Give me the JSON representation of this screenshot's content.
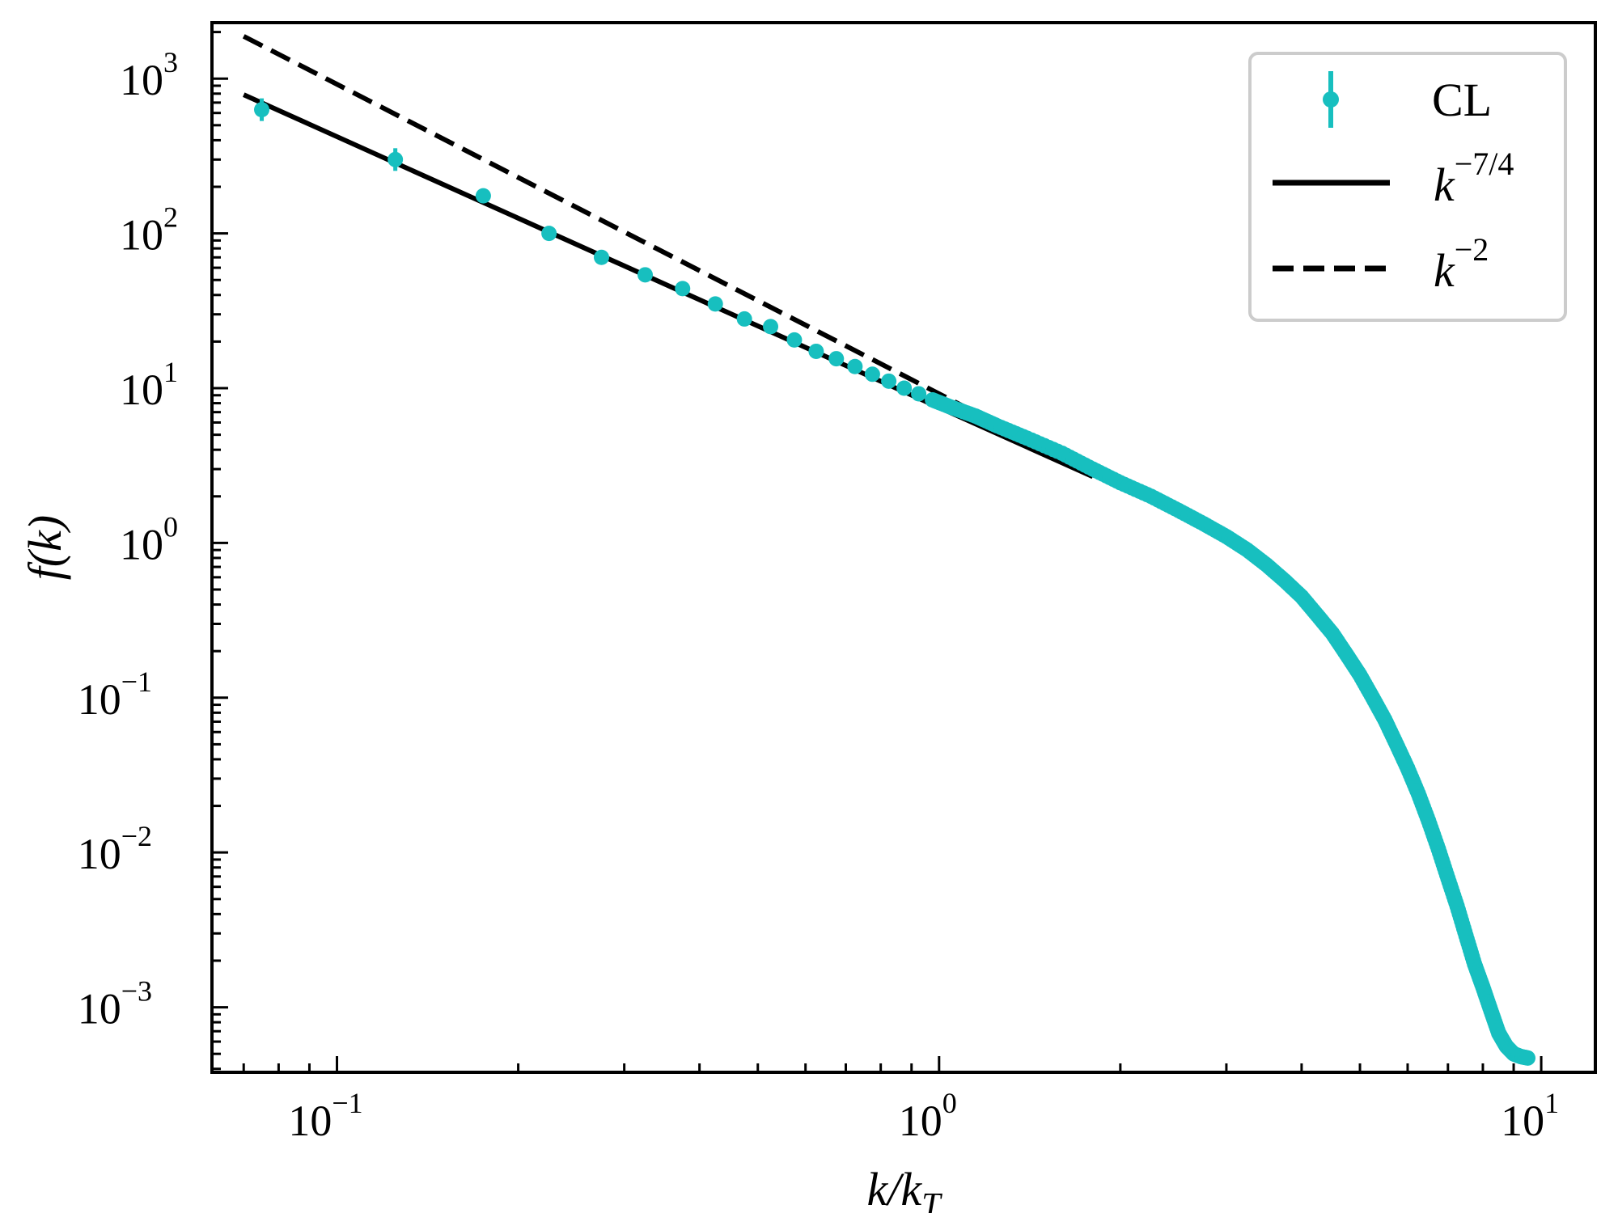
{
  "chart_data": {
    "type": "scatter",
    "xscale": "log",
    "yscale": "log",
    "xlim": [
      0.062,
      12.3
    ],
    "ylim": [
      0.00038,
      2300
    ],
    "xlabel": "k/k_T",
    "ylabel": "f(k)",
    "grid": false,
    "legend_position": "top-right",
    "x_ticks": [
      {
        "value": 0.1,
        "label": "10",
        "exponent": "−1"
      },
      {
        "value": 1,
        "label": "10",
        "exponent": "0"
      },
      {
        "value": 10,
        "label": "10",
        "exponent": "1"
      }
    ],
    "y_ticks": [
      {
        "value": 0.001,
        "label": "10",
        "exponent": "−3"
      },
      {
        "value": 0.01,
        "label": "10",
        "exponent": "−2"
      },
      {
        "value": 0.1,
        "label": "10",
        "exponent": "−1"
      },
      {
        "value": 1,
        "label": "10",
        "exponent": "0"
      },
      {
        "value": 10,
        "label": "10",
        "exponent": "1"
      },
      {
        "value": 100,
        "label": "10",
        "exponent": "2"
      },
      {
        "value": 1000,
        "label": "10",
        "exponent": "3"
      }
    ],
    "series": [
      {
        "name": "CL",
        "style": "markers-errorbars",
        "color": "#17bfbf",
        "points": [
          [
            0.075,
            630
          ],
          [
            0.125,
            300
          ],
          [
            0.175,
            175
          ],
          [
            0.225,
            100
          ],
          [
            0.275,
            70
          ],
          [
            0.325,
            54
          ],
          [
            0.375,
            44
          ],
          [
            0.425,
            35
          ],
          [
            0.475,
            28
          ],
          [
            0.525,
            25
          ],
          [
            0.575,
            20.5
          ],
          [
            0.625,
            17.3
          ],
          [
            0.675,
            15.5
          ],
          [
            0.725,
            13.8
          ],
          [
            0.775,
            12.3
          ],
          [
            0.825,
            11.1
          ],
          [
            0.875,
            10.0
          ],
          [
            0.925,
            9.2
          ],
          [
            0.975,
            8.4
          ],
          [
            1.05,
            7.5
          ],
          [
            1.15,
            6.6
          ],
          [
            1.25,
            5.7
          ],
          [
            1.4,
            4.75
          ],
          [
            1.6,
            3.8
          ],
          [
            1.8,
            3.0
          ],
          [
            2.0,
            2.45
          ],
          [
            2.25,
            2.0
          ],
          [
            2.5,
            1.62
          ],
          [
            2.75,
            1.33
          ],
          [
            3.0,
            1.1
          ],
          [
            3.25,
            0.9
          ],
          [
            3.5,
            0.72
          ],
          [
            3.75,
            0.57
          ],
          [
            4.0,
            0.45
          ],
          [
            4.25,
            0.34
          ],
          [
            4.5,
            0.26
          ],
          [
            4.75,
            0.19
          ],
          [
            5.0,
            0.14
          ],
          [
            5.25,
            0.1
          ],
          [
            5.5,
            0.072
          ],
          [
            5.75,
            0.05
          ],
          [
            6.0,
            0.035
          ],
          [
            6.25,
            0.024
          ],
          [
            6.5,
            0.016
          ],
          [
            6.75,
            0.0105
          ],
          [
            7.0,
            0.0068
          ],
          [
            7.25,
            0.0045
          ],
          [
            7.5,
            0.0029
          ],
          [
            7.75,
            0.0019
          ],
          [
            8.0,
            0.00135
          ],
          [
            8.25,
            0.00095
          ],
          [
            8.5,
            0.00068
          ],
          [
            8.75,
            0.00056
          ],
          [
            9.0,
            0.0005
          ],
          [
            9.25,
            0.00048
          ],
          [
            9.5,
            0.00047
          ]
        ]
      },
      {
        "name": "k^{-7/4}",
        "style": "solid",
        "color": "#000000",
        "x_range": [
          0.07,
          1.8
        ],
        "exponent": -1.75,
        "amplitude": 7.5
      },
      {
        "name": "k^{-2}",
        "style": "dashed",
        "color": "#000000",
        "x_range": [
          0.07,
          1.8
        ],
        "exponent": -2,
        "amplitude": 9.2
      }
    ],
    "legend": [
      {
        "text": "CL",
        "math": false
      },
      {
        "base": "k",
        "exponent": "−7/4",
        "math": true
      },
      {
        "base": "k",
        "exponent": "−2",
        "math": true
      }
    ]
  }
}
